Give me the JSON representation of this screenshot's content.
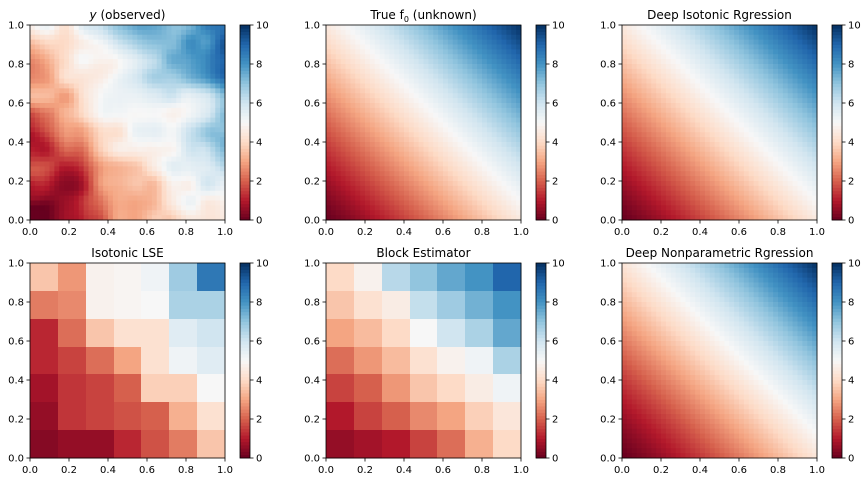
{
  "figure": {
    "colormap": "RdBu",
    "colormap_stops": [
      "#67001f",
      "#b2182b",
      "#d6604d",
      "#f4a582",
      "#fddbc7",
      "#f7f7f7",
      "#d1e5f0",
      "#92c5de",
      "#4393c3",
      "#2166ac",
      "#053061"
    ]
  },
  "chart_data": [
    {
      "type": "heatmap",
      "title_prefix": "y",
      "title_rest": " (observed)",
      "render": "field",
      "field": "noisy",
      "xlim": [
        0,
        1
      ],
      "ylim": [
        0,
        1
      ],
      "clim": [
        0,
        10
      ],
      "xticks": [
        "0.0",
        "0.2",
        "0.4",
        "0.6",
        "0.8",
        "1.0"
      ],
      "yticks": [
        "0.0",
        "0.2",
        "0.4",
        "0.6",
        "0.8",
        "1.0"
      ],
      "colorbar_ticks": [
        "0",
        "2",
        "4",
        "6",
        "8",
        "10"
      ]
    },
    {
      "type": "heatmap",
      "title_prefix": "True f",
      "title_sub": "0",
      "title_rest": " (unknown)",
      "render": "field",
      "field": "smooth",
      "xlim": [
        0,
        1
      ],
      "ylim": [
        0,
        1
      ],
      "clim": [
        0,
        10
      ],
      "xticks": [
        "0.0",
        "0.2",
        "0.4",
        "0.6",
        "0.8",
        "1.0"
      ],
      "yticks": [
        "0.0",
        "0.2",
        "0.4",
        "0.6",
        "0.8",
        "1.0"
      ],
      "colorbar_ticks": [
        "0",
        "2",
        "4",
        "6",
        "8",
        "10"
      ]
    },
    {
      "type": "heatmap",
      "title": "Deep Isotonic Rgression",
      "render": "field",
      "field": "smooth",
      "xlim": [
        0,
        1
      ],
      "ylim": [
        0,
        1
      ],
      "clim": [
        0,
        10
      ],
      "xticks": [
        "0.0",
        "0.2",
        "0.4",
        "0.6",
        "0.8",
        "1.0"
      ],
      "yticks": [
        "0.0",
        "0.2",
        "0.4",
        "0.6",
        "0.8",
        "1.0"
      ],
      "colorbar_ticks": [
        "0",
        "2",
        "4",
        "6",
        "8",
        "10"
      ]
    },
    {
      "type": "heatmap",
      "title": "Isotonic LSE",
      "render": "grid",
      "grid_rows_top_to_bottom": [
        [
          3.6,
          2.8,
          4.8,
          4.9,
          5.2,
          6.8,
          8.6
        ],
        [
          2.4,
          2.6,
          4.8,
          4.9,
          5.0,
          6.6,
          6.6
        ],
        [
          1.2,
          2.2,
          3.6,
          4.2,
          4.2,
          5.6,
          6.0
        ],
        [
          1.2,
          1.6,
          2.2,
          3.0,
          4.2,
          5.2,
          5.6
        ],
        [
          0.8,
          1.4,
          1.6,
          2.0,
          3.8,
          3.8,
          5.0
        ],
        [
          0.6,
          1.4,
          1.6,
          1.8,
          2.0,
          3.2,
          4.2
        ],
        [
          0.4,
          0.6,
          0.6,
          1.2,
          1.8,
          2.4,
          3.6
        ]
      ],
      "xlim": [
        0,
        1
      ],
      "ylim": [
        0,
        1
      ],
      "clim": [
        0,
        10
      ],
      "xticks": [
        "0.0",
        "0.2",
        "0.4",
        "0.6",
        "0.8",
        "1.0"
      ],
      "yticks": [
        "0.0",
        "0.2",
        "0.4",
        "0.6",
        "0.8",
        "1.0"
      ],
      "colorbar_ticks": [
        "0",
        "2",
        "4",
        "6",
        "8",
        "10"
      ]
    },
    {
      "type": "heatmap",
      "title": "Block Estimator",
      "render": "grid",
      "grid_rows_top_to_bottom": [
        [
          4.0,
          4.8,
          6.4,
          7.0,
          7.6,
          8.0,
          9.0
        ],
        [
          3.6,
          4.2,
          4.6,
          6.2,
          6.8,
          7.4,
          8.0
        ],
        [
          3.0,
          3.4,
          4.0,
          5.0,
          6.0,
          6.6,
          7.6
        ],
        [
          2.2,
          2.8,
          3.4,
          4.2,
          4.8,
          5.2,
          6.6
        ],
        [
          1.6,
          2.0,
          2.8,
          3.6,
          4.0,
          4.6,
          5.2
        ],
        [
          1.0,
          1.6,
          2.0,
          2.6,
          3.0,
          3.8,
          4.4
        ],
        [
          0.6,
          0.8,
          1.0,
          1.6,
          2.2,
          3.2,
          4.0
        ]
      ],
      "xlim": [
        0,
        1
      ],
      "ylim": [
        0,
        1
      ],
      "clim": [
        0,
        10
      ],
      "xticks": [
        "0.0",
        "0.2",
        "0.4",
        "0.6",
        "0.8",
        "1.0"
      ],
      "yticks": [
        "0.0",
        "0.2",
        "0.4",
        "0.6",
        "0.8",
        "1.0"
      ],
      "colorbar_ticks": [
        "0",
        "2",
        "4",
        "6",
        "8",
        "10"
      ]
    },
    {
      "type": "heatmap",
      "title": "Deep Nonparametric Rgression",
      "render": "field",
      "field": "smooth_low",
      "xlim": [
        0,
        1
      ],
      "ylim": [
        0,
        1
      ],
      "clim": [
        0,
        10
      ],
      "xticks": [
        "0.0",
        "0.2",
        "0.4",
        "0.6",
        "0.8",
        "1.0"
      ],
      "yticks": [
        "0.0",
        "0.2",
        "0.4",
        "0.6",
        "0.8",
        "1.0"
      ],
      "colorbar_ticks": [
        "0",
        "2",
        "4",
        "6",
        "8",
        "10"
      ]
    }
  ]
}
